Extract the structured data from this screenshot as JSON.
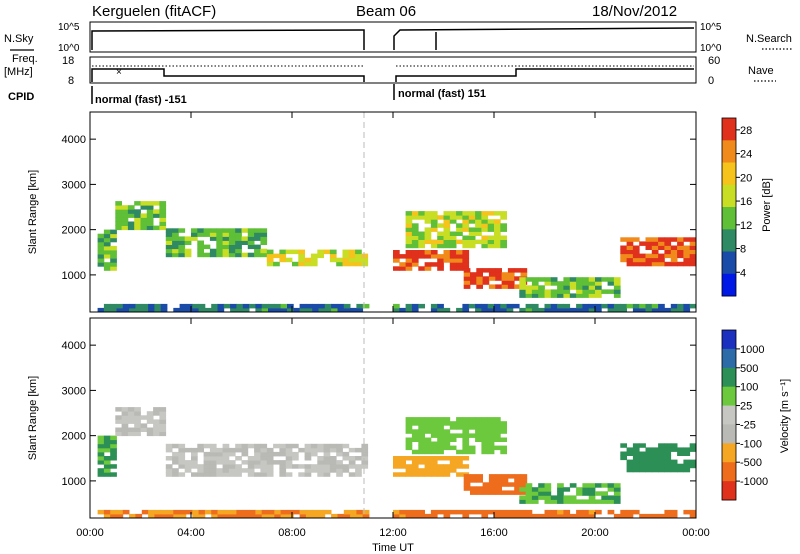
{
  "header": {
    "station": "Kerguelen (fitACF)",
    "beam": "Beam 06",
    "date": "18/Nov/2012"
  },
  "noise_panel": {
    "left_label": "N.Sky",
    "right_label": "N.Search",
    "top_tick": "10^5",
    "bottom_tick": "10^0"
  },
  "freq_panel": {
    "left_label_1": "Freq.",
    "left_label_2": "[MHz]",
    "left_ticks": [
      "18",
      "8"
    ],
    "right_ticks": [
      "60",
      "0"
    ],
    "right_label": "Nave"
  },
  "cpid": {
    "label": "CPID",
    "segments": [
      "normal (fast) -151",
      "normal (fast) 151"
    ]
  },
  "x_axis": {
    "label": "Time UT",
    "ticks": [
      "00:00",
      "04:00",
      "08:00",
      "12:00",
      "16:00",
      "20:00",
      "00:00"
    ]
  },
  "y_axis": {
    "label": "Slant Range [km]",
    "ticks": [
      "1000",
      "2000",
      "3000",
      "4000"
    ]
  },
  "chart_data": [
    {
      "type": "heatmap",
      "name": "power",
      "xlabel": "Time UT",
      "ylabel": "Slant Range [km]",
      "xlim_hours": [
        0,
        24
      ],
      "ylim_km": [
        180,
        4600
      ],
      "colorbar_label": "Power [dB]",
      "colorbar_ticks": [
        "4",
        "8",
        "12",
        "16",
        "20",
        "24",
        "28"
      ],
      "colorbar_range": [
        0,
        30
      ],
      "colors": [
        "#0018e6",
        "#1a4ba8",
        "#2f8a63",
        "#5fbf37",
        "#c7de24",
        "#f5c31b",
        "#f08a1a",
        "#e0311d"
      ],
      "data_gap_hours": [
        10.9,
        11.9
      ],
      "bands": [
        {
          "t0": 0.3,
          "t1": 1.0,
          "r0": 1100,
          "r1": 2000,
          "v": 12
        },
        {
          "t0": 1.0,
          "t1": 3.0,
          "r0": 2000,
          "r1": 2550,
          "v": 14
        },
        {
          "t0": 3.0,
          "t1": 7.0,
          "r0": 1400,
          "r1": 2000,
          "v": 12
        },
        {
          "t0": 7.0,
          "t1": 10.9,
          "r0": 1200,
          "r1": 1500,
          "v": 17
        },
        {
          "t0": 0.3,
          "t1": 10.9,
          "r0": 180,
          "r1": 300,
          "v": 8
        },
        {
          "t0": 12.0,
          "t1": 15.0,
          "r0": 1100,
          "r1": 1500,
          "v": 27
        },
        {
          "t0": 14.8,
          "t1": 17.2,
          "r0": 700,
          "r1": 1100,
          "v": 28
        },
        {
          "t0": 12.5,
          "t1": 16.5,
          "r0": 1600,
          "r1": 2400,
          "v": 16
        },
        {
          "t0": 17.0,
          "t1": 21.0,
          "r0": 500,
          "r1": 900,
          "v": 13
        },
        {
          "t0": 21.0,
          "t1": 23.8,
          "r0": 1200,
          "r1": 1800,
          "v": 27
        },
        {
          "t0": 12.0,
          "t1": 23.8,
          "r0": 180,
          "r1": 300,
          "v": 8
        }
      ]
    },
    {
      "type": "heatmap",
      "name": "velocity",
      "xlabel": "Time UT",
      "ylabel": "Slant Range [km]",
      "xlim_hours": [
        0,
        24
      ],
      "ylim_km": [
        180,
        4600
      ],
      "colorbar_label": "Velocity [m s⁻¹]",
      "colorbar_ticks": [
        "1000",
        "500",
        "100",
        "25",
        "-25",
        "-100",
        "-500",
        "-1000"
      ],
      "colors": [
        "#1c30c0",
        "#2c6aa8",
        "#2c8f55",
        "#6cc83c",
        "#c6c6c2",
        "#b9b9b5",
        "#f5a623",
        "#ee6d1c",
        "#e0311d"
      ],
      "data_gap_hours": [
        10.9,
        11.9
      ],
      "bands": [
        {
          "t0": 0.3,
          "t1": 1.0,
          "r0": 1100,
          "r1": 2000,
          "v": 100
        },
        {
          "t0": 1.0,
          "t1": 3.0,
          "r0": 2000,
          "r1": 2550,
          "v": 0
        },
        {
          "t0": 3.0,
          "t1": 10.9,
          "r0": 1100,
          "r1": 1800,
          "v": 0
        },
        {
          "t0": 0.3,
          "t1": 10.9,
          "r0": 180,
          "r1": 300,
          "v": -100
        },
        {
          "t0": 12.0,
          "t1": 15.0,
          "r0": 1100,
          "r1": 1500,
          "v": -50
        },
        {
          "t0": 14.8,
          "t1": 17.2,
          "r0": 700,
          "r1": 1100,
          "v": -300
        },
        {
          "t0": 12.5,
          "t1": 16.5,
          "r0": 1600,
          "r1": 2400,
          "v": 50
        },
        {
          "t0": 17.0,
          "t1": 21.0,
          "r0": 500,
          "r1": 900,
          "v": 100
        },
        {
          "t0": 21.0,
          "t1": 23.8,
          "r0": 1200,
          "r1": 1800,
          "v": 300
        },
        {
          "t0": 12.0,
          "t1": 23.8,
          "r0": 180,
          "r1": 300,
          "v": -150
        }
      ]
    }
  ]
}
